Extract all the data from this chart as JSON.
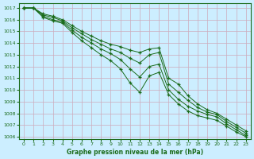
{
  "background_color": "#cceeff",
  "grid_color": "#aaddcc",
  "line_color": "#1a6b1a",
  "title": "Graphe pression niveau de la mer (hPa)",
  "xlabel_color": "#1a6b1a",
  "xlim": [
    -0.5,
    23.5
  ],
  "ylim": [
    1005.8,
    1017.4
  ],
  "yticks": [
    1006,
    1007,
    1008,
    1009,
    1010,
    1011,
    1012,
    1013,
    1014,
    1015,
    1016,
    1017
  ],
  "xticks": [
    0,
    1,
    2,
    3,
    4,
    5,
    6,
    7,
    8,
    9,
    10,
    11,
    12,
    13,
    14,
    15,
    16,
    17,
    18,
    19,
    20,
    21,
    22,
    23
  ],
  "series": [
    [
      1017.0,
      1017.0,
      1016.5,
      1016.3,
      1016.0,
      1015.5,
      1015.0,
      1014.6,
      1014.2,
      1013.9,
      1013.7,
      1013.4,
      1013.2,
      1013.5,
      1013.6,
      1011.0,
      1010.5,
      1009.5,
      1008.8,
      1008.3,
      1008.0,
      1007.5,
      1007.0,
      1006.5
    ],
    [
      1017.0,
      1017.0,
      1016.4,
      1016.2,
      1015.9,
      1015.3,
      1014.8,
      1014.3,
      1013.9,
      1013.5,
      1013.2,
      1012.7,
      1012.3,
      1013.0,
      1013.2,
      1010.5,
      1009.8,
      1009.1,
      1008.5,
      1008.1,
      1007.9,
      1007.3,
      1006.8,
      1006.3
    ],
    [
      1017.0,
      1017.0,
      1016.3,
      1016.0,
      1015.8,
      1015.1,
      1014.5,
      1014.0,
      1013.5,
      1013.1,
      1012.6,
      1011.8,
      1011.1,
      1012.0,
      1012.2,
      1010.0,
      1009.2,
      1008.6,
      1008.2,
      1007.9,
      1007.7,
      1007.1,
      1006.6,
      1006.1
    ],
    [
      1017.0,
      1017.0,
      1016.2,
      1015.9,
      1015.7,
      1014.9,
      1014.2,
      1013.6,
      1013.0,
      1012.5,
      1011.8,
      1010.6,
      1009.8,
      1011.2,
      1011.5,
      1009.6,
      1008.8,
      1008.2,
      1007.8,
      1007.6,
      1007.4,
      1006.9,
      1006.4,
      1006.0
    ]
  ]
}
